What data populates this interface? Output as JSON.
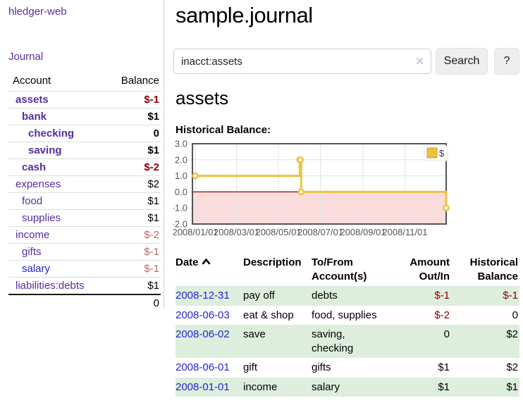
{
  "colors": {
    "link_purple": "#5a2ca0",
    "link_blue": "#2323d6",
    "negative_strong": "#8b0000",
    "negative_dim": "#bd6a6a",
    "row_stripe_green": "#ddeedd",
    "chart_line_gold": "#edc240",
    "chart_negative_region": "#fbdcdc",
    "chart_zero_line": "#8b0000",
    "button_bg": "#eeeeee"
  },
  "sidebar": {
    "brand": "hledger-web",
    "journal_link": "Journal",
    "accounts_table": {
      "header_account": "Account",
      "header_balance": "Balance",
      "rows": [
        {
          "name": "assets",
          "balance": "$-1",
          "level": 1,
          "bold": true,
          "neg": "strong",
          "blue": false
        },
        {
          "name": "bank",
          "balance": "$1",
          "level": 2,
          "bold": true,
          "neg": "none",
          "blue": false
        },
        {
          "name": "checking",
          "balance": "0",
          "level": 3,
          "bold": true,
          "neg": "none",
          "blue": false
        },
        {
          "name": "saving",
          "balance": "$1",
          "level": 3,
          "bold": true,
          "neg": "none",
          "blue": false
        },
        {
          "name": "cash",
          "balance": "$-2",
          "level": 2,
          "bold": true,
          "neg": "strong",
          "blue": false
        },
        {
          "name": "expenses",
          "balance": "$2",
          "level": 1,
          "bold": false,
          "neg": "none",
          "blue": false
        },
        {
          "name": "food",
          "balance": "$1",
          "level": 2,
          "bold": false,
          "neg": "none",
          "blue": false
        },
        {
          "name": "supplies",
          "balance": "$1",
          "level": 2,
          "bold": false,
          "neg": "none",
          "blue": false
        },
        {
          "name": "income",
          "balance": "$-2",
          "level": 1,
          "bold": false,
          "neg": "dim",
          "blue": false
        },
        {
          "name": "gifts",
          "balance": "$-1",
          "level": 2,
          "bold": false,
          "neg": "dim",
          "blue": false
        },
        {
          "name": "salary",
          "balance": "$-1",
          "level": 2,
          "bold": false,
          "neg": "dim",
          "blue": true
        },
        {
          "name": "liabilities:debts",
          "balance": "$1",
          "level": 1,
          "bold": false,
          "neg": "none",
          "blue": false
        }
      ],
      "total": "0"
    }
  },
  "header": {
    "title": "sample.journal"
  },
  "search": {
    "value": "inacct:assets",
    "clear_icon": "✕",
    "search_button": "Search",
    "help_button": "?"
  },
  "register": {
    "heading": "assets",
    "chart_title": "Historical Balance:",
    "table": {
      "headers": {
        "date": "Date",
        "description": "Description",
        "accounts": "To/From Account(s)",
        "amount": "Amount Out/In",
        "balance": "Historical Balance"
      },
      "rows": [
        {
          "date": "2008-12-31",
          "description": "pay off",
          "accounts": "debts",
          "amount": "$-1",
          "amount_neg": true,
          "balance": "$-1",
          "balance_neg": true,
          "shade": true
        },
        {
          "date": "2008-06-03",
          "description": "eat & shop",
          "accounts": "food, supplies",
          "amount": "$-2",
          "amount_neg": true,
          "balance": "0",
          "balance_neg": false,
          "shade": false
        },
        {
          "date": "2008-06-02",
          "description": "save",
          "accounts": "saving, checking",
          "amount": "0",
          "amount_neg": false,
          "balance": "$2",
          "balance_neg": false,
          "shade": true
        },
        {
          "date": "2008-06-01",
          "description": "gift",
          "accounts": "gifts",
          "amount": "$1",
          "amount_neg": false,
          "balance": "$2",
          "balance_neg": false,
          "shade": false
        },
        {
          "date": "2008-01-01",
          "description": "income",
          "accounts": "salary",
          "amount": "$1",
          "amount_neg": false,
          "balance": "$1",
          "balance_neg": false,
          "shade": true
        }
      ]
    }
  },
  "chart_data": {
    "type": "line",
    "title": "Historical Balance:",
    "legend": "$",
    "legend_position": "top-right",
    "grid": true,
    "step": "after",
    "x_min": "2008-01-01",
    "x_max": "2008-12-31",
    "ylim": [
      -2,
      3
    ],
    "y_ticks": [
      "3.0",
      "2.0",
      "1.0",
      "0.0",
      "-1.0",
      "-2.0"
    ],
    "x_ticks": [
      {
        "label": "2008/01/01",
        "date": "2008-01-01"
      },
      {
        "label": "2008/03/01",
        "date": "2008-03-01"
      },
      {
        "label": "2008/05/01",
        "date": "2008-05-01"
      },
      {
        "label": "2008/07/01",
        "date": "2008-07-01"
      },
      {
        "label": "2008/09/01",
        "date": "2008-09-01"
      },
      {
        "label": "2008/11/01",
        "date": "2008-11-01"
      }
    ],
    "series": [
      {
        "name": "$",
        "points": [
          {
            "date": "2008-01-01",
            "value": 1
          },
          {
            "date": "2008-06-01",
            "value": 2
          },
          {
            "date": "2008-06-02",
            "value": 2
          },
          {
            "date": "2008-06-03",
            "value": 0
          },
          {
            "date": "2008-12-31",
            "value": -1
          }
        ]
      }
    ]
  }
}
